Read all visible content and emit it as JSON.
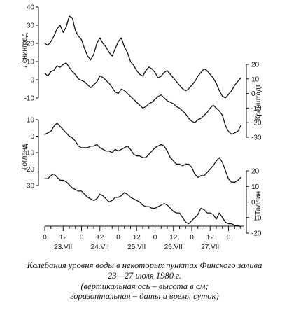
{
  "caption": {
    "line1": "Колебания уровня воды в некоторых пунктах Финского залива",
    "line2": "23—27 июля 1980 г.",
    "line3": "(вертикальная ось – высота в см;",
    "line4": "горизонтальная – даты и время суток)"
  },
  "chart_data": {
    "type": "line",
    "time_axis": {
      "hour_ticks": [
        "0",
        "12",
        "0",
        "12",
        "0",
        "12",
        "0",
        "12",
        "0",
        "12",
        "0"
      ],
      "date_labels": [
        "23.VII",
        "24.VII",
        "25.VII",
        "26.VII",
        "27.VII"
      ]
    },
    "series": [
      {
        "name": "Ленинград",
        "axis_side": "left",
        "ylim": [
          -10,
          40
        ],
        "ticks": [
          "40",
          "30",
          "20",
          "10",
          "0",
          "-10"
        ],
        "x": [
          0,
          2,
          4,
          6,
          8,
          10,
          12,
          14,
          16,
          18,
          20,
          22,
          24,
          26,
          28,
          30,
          32,
          34,
          36,
          38,
          40,
          42,
          44,
          46,
          48,
          50,
          52,
          54,
          56,
          58,
          60,
          62,
          64,
          66,
          68,
          70,
          72,
          74,
          76,
          78,
          80,
          82,
          84,
          86,
          88,
          90,
          92,
          94,
          96,
          98,
          100,
          102,
          104,
          106,
          108,
          110,
          112,
          114,
          116,
          118,
          120,
          122,
          124,
          126,
          128
        ],
        "y": [
          20,
          19,
          21,
          24,
          28,
          30,
          26,
          29,
          35,
          34,
          27,
          24,
          22,
          17,
          13,
          11,
          14,
          20,
          23,
          20,
          18,
          15,
          13,
          17,
          21,
          23,
          18,
          15,
          10,
          8,
          5,
          3,
          2,
          5,
          7,
          6,
          4,
          1,
          2,
          4,
          5,
          3,
          1,
          -1,
          -3,
          -5,
          -6,
          -5,
          -3,
          -1,
          2,
          4,
          6,
          5,
          3,
          1,
          -2,
          -6,
          -9,
          -10,
          -8,
          -6,
          -3,
          -1,
          1
        ]
      },
      {
        "name": "Кронштадт",
        "axis_side": "right",
        "ylim": [
          -30,
          20
        ],
        "ticks": [
          "20",
          "10",
          "0",
          "-10",
          "-20",
          "-30"
        ],
        "x": [
          0,
          2,
          4,
          6,
          8,
          10,
          12,
          14,
          16,
          18,
          20,
          22,
          24,
          26,
          28,
          30,
          32,
          34,
          36,
          38,
          40,
          42,
          44,
          46,
          48,
          50,
          52,
          54,
          56,
          58,
          60,
          62,
          64,
          66,
          68,
          70,
          72,
          74,
          76,
          78,
          80,
          82,
          84,
          86,
          88,
          90,
          92,
          94,
          96,
          98,
          100,
          102,
          104,
          106,
          108,
          110,
          112,
          114,
          116,
          118,
          120,
          122,
          124,
          126,
          128
        ],
        "y": [
          14,
          12,
          15,
          16,
          19,
          18,
          20,
          21,
          18,
          15,
          13,
          10,
          9,
          8,
          6,
          4,
          6,
          8,
          12,
          11,
          9,
          7,
          4,
          1,
          0,
          3,
          2,
          0,
          -2,
          -4,
          -6,
          -8,
          -10,
          -9,
          -7,
          -6,
          -4,
          -2,
          -1,
          -3,
          -5,
          -6,
          -7,
          -9,
          -10,
          -12,
          -14,
          -17,
          -19,
          -20,
          -18,
          -17,
          -15,
          -13,
          -10,
          -8,
          -10,
          -12,
          -15,
          -22,
          -26,
          -28,
          -27,
          -26,
          -22
        ]
      },
      {
        "name": "Гогланд",
        "axis_side": "left",
        "ylim": [
          -30,
          10
        ],
        "ticks": [
          "10",
          "0",
          "-10",
          "-20",
          "-30"
        ],
        "x": [
          0,
          2,
          4,
          6,
          8,
          10,
          12,
          14,
          16,
          18,
          20,
          22,
          24,
          26,
          28,
          30,
          32,
          34,
          36,
          38,
          40,
          42,
          44,
          46,
          48,
          50,
          52,
          54,
          56,
          58,
          60,
          62,
          64,
          66,
          68,
          70,
          72,
          74,
          76,
          78,
          80,
          82,
          84,
          86,
          88,
          90,
          92,
          94,
          96,
          98,
          100,
          102,
          104,
          106,
          108,
          110,
          112,
          114,
          116,
          118,
          120,
          122,
          124,
          126,
          128
        ],
        "y": [
          1,
          2,
          3,
          6,
          8,
          6,
          4,
          2,
          0,
          -1,
          -3,
          -6,
          -7,
          -7,
          -7,
          -6,
          -6,
          -5,
          -7,
          -8,
          -9,
          -9,
          -10,
          -8,
          -9,
          -8,
          -7,
          -6,
          -8,
          -11,
          -12,
          -12,
          -13,
          -13,
          -11,
          -9,
          -7,
          -6,
          -5,
          -6,
          -9,
          -13,
          -15,
          -17,
          -17,
          -18,
          -17,
          -17,
          -19,
          -23,
          -25,
          -24,
          -24,
          -22,
          -20,
          -18,
          -15,
          -13,
          -16,
          -21,
          -26,
          -28,
          -28,
          -27,
          -25
        ]
      },
      {
        "name": "Таллин",
        "axis_side": "right",
        "ylim": [
          -20,
          20
        ],
        "ticks": [
          "20",
          "10",
          "0",
          "-10",
          "-20"
        ],
        "x": [
          0,
          2,
          4,
          6,
          8,
          10,
          12,
          14,
          16,
          18,
          20,
          22,
          24,
          26,
          28,
          30,
          32,
          34,
          36,
          38,
          40,
          42,
          44,
          46,
          48,
          50,
          52,
          54,
          56,
          58,
          60,
          62,
          64,
          66,
          68,
          70,
          72,
          74,
          76,
          78,
          80,
          82,
          84,
          86,
          88,
          90,
          92,
          94,
          96,
          98,
          100,
          102,
          104,
          106,
          108,
          110,
          112,
          114,
          116,
          118,
          120,
          122,
          124,
          126,
          128
        ],
        "y": [
          15,
          15,
          17,
          18,
          16,
          14,
          14,
          13,
          11,
          9,
          8,
          7,
          7,
          5,
          3,
          2,
          1,
          2,
          5,
          4,
          2,
          0,
          1,
          3,
          3,
          4,
          6,
          5,
          3,
          2,
          1,
          0,
          -2,
          -3,
          -3,
          -4,
          -4,
          -3,
          -2,
          -1,
          -2,
          -4,
          -6,
          -7,
          -7,
          -10,
          -13,
          -14,
          -12,
          -10,
          -8,
          -4,
          -5,
          -7,
          -7,
          -8,
          -11,
          -7,
          -10,
          -13,
          -14,
          -14,
          -15,
          -15,
          -16
        ]
      }
    ]
  }
}
